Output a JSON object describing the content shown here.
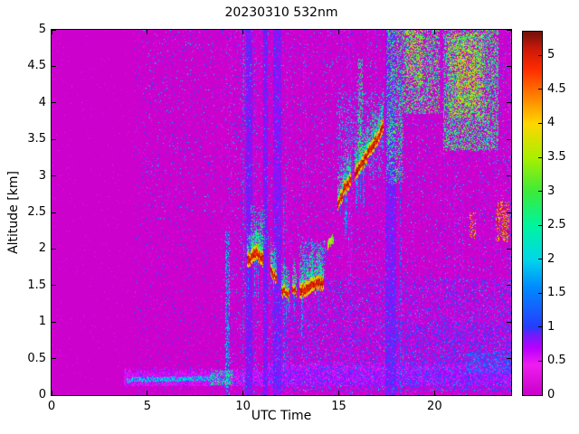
{
  "chart_data": {
    "type": "heatmap",
    "title": "20230310 532nm",
    "xlabel": "UTC Time",
    "ylabel": "Altitude [km]",
    "x_range": [
      0,
      24
    ],
    "y_range": [
      0,
      5
    ],
    "value_range": [
      0,
      5.35
    ],
    "x_ticks": [
      0,
      5,
      10,
      15,
      20
    ],
    "y_ticks": [
      0,
      0.5,
      1,
      1.5,
      2,
      2.5,
      3,
      3.5,
      4,
      4.5,
      5
    ],
    "colorbar_ticks": [
      0,
      0.5,
      1,
      1.5,
      2,
      2.5,
      3,
      3.5,
      4,
      4.5,
      5
    ],
    "background_value": 0.03,
    "colormap_stops": [
      [
        0.0,
        [
          202,
          0,
          202
        ]
      ],
      [
        0.45,
        [
          240,
          30,
          240
        ]
      ],
      [
        0.7,
        [
          185,
          0,
          255
        ]
      ],
      [
        0.9,
        [
          110,
          30,
          250
        ]
      ],
      [
        1.0,
        [
          40,
          60,
          255
        ]
      ],
      [
        1.6,
        [
          0,
          140,
          255
        ]
      ],
      [
        2.0,
        [
          0,
          215,
          235
        ]
      ],
      [
        2.5,
        [
          0,
          245,
          160
        ]
      ],
      [
        3.0,
        [
          60,
          235,
          60
        ]
      ],
      [
        3.5,
        [
          170,
          240,
          0
        ]
      ],
      [
        4.0,
        [
          255,
          215,
          0
        ]
      ],
      [
        4.4,
        [
          255,
          130,
          0
        ]
      ],
      [
        4.8,
        [
          255,
          45,
          0
        ]
      ],
      [
        5.1,
        [
          205,
          25,
          10
        ]
      ],
      [
        5.35,
        [
          115,
          18,
          10
        ]
      ]
    ],
    "features": [
      {
        "type": "noise",
        "t": [
          0,
          24
        ],
        "alt": [
          0,
          5
        ],
        "density": 0.012,
        "vmin": 0.15,
        "vmax": 0.65
      },
      {
        "type": "noise",
        "t": [
          4.3,
          9.0
        ],
        "alt": [
          0,
          5
        ],
        "density": 0.055,
        "vmin": 0.2,
        "vmax": 1.5
      },
      {
        "type": "noise",
        "t": [
          4.8,
          8.6
        ],
        "alt": [
          2.4,
          5
        ],
        "density": 0.025,
        "vmin": 0.9,
        "vmax": 2.4
      },
      {
        "type": "noise",
        "t": [
          9.0,
          24
        ],
        "alt": [
          0,
          5
        ],
        "density": 0.1,
        "vmin": 0.2,
        "vmax": 1.4
      },
      {
        "type": "noise",
        "t": [
          9.0,
          24
        ],
        "alt": [
          0,
          5
        ],
        "density": 0.018,
        "vmin": 1.4,
        "vmax": 2.7
      },
      {
        "type": "noise",
        "t": [
          11.4,
          24
        ],
        "alt": [
          0.05,
          1.6
        ],
        "density": 0.33,
        "vmin": 0.35,
        "vmax": 1.3
      },
      {
        "type": "noise",
        "t": [
          17.5,
          24
        ],
        "alt": [
          0.05,
          1.0
        ],
        "density": 0.25,
        "vmin": 0.5,
        "vmax": 1.3
      },
      {
        "type": "columns_texture",
        "t": [
          8.8,
          24
        ],
        "alt": [
          0,
          5
        ],
        "count": 110,
        "amp": 0.28
      },
      {
        "type": "band",
        "t": [
          3.8,
          24
        ],
        "alt": [
          0.12,
          0.33
        ],
        "value": 0.55,
        "jitter": 0.3
      },
      {
        "type": "band",
        "t": [
          11.3,
          24
        ],
        "alt": [
          0.12,
          0.42
        ],
        "value": 0.5,
        "jitter": 0.3
      },
      {
        "type": "line",
        "t": [
          3.95,
          8.3
        ],
        "alt": [
          0.2,
          0.22
        ],
        "value": 1.9,
        "jitter": 0.45,
        "thickness": 0.06
      },
      {
        "type": "patch",
        "t": [
          8.3,
          9.45
        ],
        "alt": [
          0.14,
          0.34
        ],
        "density": 0.75,
        "vmin": 1.4,
        "vmax": 3.0
      },
      {
        "type": "column",
        "t": 9.2,
        "width": 0.22,
        "alt": [
          0,
          2.25
        ],
        "density": 0.6,
        "vmin": 0.8,
        "vmax": 2.5
      },
      {
        "type": "column",
        "t": 10.05,
        "width": 0.1,
        "alt": [
          0,
          5
        ],
        "density": 0.45,
        "vmin": 0.7,
        "vmax": 2.0
      },
      {
        "type": "column",
        "t": 10.35,
        "width": 0.3,
        "alt": [
          0,
          5
        ],
        "density": 0.88,
        "vmin": 0.7,
        "vmax": 1.0
      },
      {
        "type": "column",
        "t": 11.2,
        "width": 0.22,
        "alt": [
          0,
          5
        ],
        "density": 0.88,
        "vmin": 0.7,
        "vmax": 1.0
      },
      {
        "type": "column",
        "t": 11.8,
        "width": 0.45,
        "alt": [
          0,
          5
        ],
        "density": 0.82,
        "vmin": 0.65,
        "vmax": 1.0
      },
      {
        "type": "column",
        "t": 12.15,
        "width": 0.1,
        "alt": [
          0.3,
          2.85
        ],
        "density": 0.5,
        "vmin": 0.8,
        "vmax": 2.2
      },
      {
        "type": "column",
        "t": 13.65,
        "width": 0.1,
        "alt": [
          1.45,
          2.15
        ],
        "density": 0.55,
        "vmin": 1.2,
        "vmax": 2.4
      },
      {
        "type": "column",
        "t": 17.75,
        "width": 0.55,
        "alt": [
          0,
          5
        ],
        "density": 0.85,
        "vmin": 0.65,
        "vmax": 1.0
      },
      {
        "type": "column",
        "t": 18.25,
        "width": 0.12,
        "alt": [
          0,
          5
        ],
        "density": 0.4,
        "vmin": 0.7,
        "vmax": 1.9
      },
      {
        "type": "patch",
        "t": [
          10.4,
          11.15
        ],
        "alt": [
          2.0,
          2.6
        ],
        "density": 0.3,
        "vmin": 1.4,
        "vmax": 2.9
      },
      {
        "type": "patch",
        "t": [
          13.0,
          14.3
        ],
        "alt": [
          1.6,
          2.1
        ],
        "density": 0.3,
        "vmin": 1.2,
        "vmax": 2.6
      },
      {
        "type": "patch",
        "t": [
          14.9,
          17.35
        ],
        "alt": [
          3.0,
          4.15
        ],
        "density": 0.18,
        "vmin": 1.2,
        "vmax": 2.5
      },
      {
        "type": "patch",
        "t": [
          16.0,
          16.25
        ],
        "alt": [
          3.3,
          4.6
        ],
        "density": 0.5,
        "vmin": 1.8,
        "vmax": 3.2
      },
      {
        "type": "patch",
        "t": [
          17.5,
          18.35
        ],
        "alt": [
          2.9,
          5.0
        ],
        "density": 0.42,
        "vmin": 1.7,
        "vmax": 3.4
      },
      {
        "type": "patch",
        "t": [
          18.35,
          20.25
        ],
        "alt": [
          3.85,
          5.0
        ],
        "density": 0.5,
        "vmin": 1.7,
        "vmax": 3.6
      },
      {
        "type": "patch",
        "t": [
          18.5,
          19.4
        ],
        "alt": [
          4.25,
          5.0
        ],
        "density": 0.3,
        "vmin": 2.8,
        "vmax": 4.2
      },
      {
        "type": "patch",
        "t": [
          20.45,
          23.35
        ],
        "alt": [
          3.35,
          5.0
        ],
        "density": 0.55,
        "vmin": 1.7,
        "vmax": 3.5
      },
      {
        "type": "patch",
        "t": [
          20.7,
          22.6
        ],
        "alt": [
          3.8,
          4.95
        ],
        "density": 0.35,
        "vmin": 2.6,
        "vmax": 4.1
      },
      {
        "type": "patch",
        "t": [
          21.1,
          22.2
        ],
        "alt": [
          4.0,
          4.75
        ],
        "density": 0.18,
        "vmin": 3.6,
        "vmax": 4.4
      },
      {
        "type": "patch",
        "t": [
          21.85,
          22.15
        ],
        "alt": [
          2.15,
          2.5
        ],
        "density": 0.5,
        "vmin": 3.2,
        "vmax": 5.2
      },
      {
        "type": "patch",
        "t": [
          23.2,
          23.9
        ],
        "alt": [
          2.1,
          2.65
        ],
        "density": 0.5,
        "vmin": 3.2,
        "vmax": 5.3
      },
      {
        "type": "patch",
        "t": [
          21.6,
          24
        ],
        "alt": [
          0.3,
          0.6
        ],
        "density": 0.45,
        "vmin": 0.8,
        "vmax": 1.8
      },
      {
        "type": "cloud",
        "points": [
          [
            10.25,
            1.84
          ],
          [
            10.65,
            1.95
          ],
          [
            11.05,
            1.87
          ]
        ],
        "thickness": 0.16
      },
      {
        "type": "cloud",
        "points": [
          [
            11.45,
            1.7
          ],
          [
            11.75,
            1.6
          ]
        ],
        "thickness": 0.12
      },
      {
        "type": "cloud",
        "points": [
          [
            12.0,
            1.44
          ],
          [
            12.4,
            1.38
          ]
        ],
        "thickness": 0.1
      },
      {
        "type": "cloud",
        "points": [
          [
            12.6,
            1.46
          ],
          [
            12.8,
            1.42
          ]
        ],
        "thickness": 0.1
      },
      {
        "type": "cloud",
        "points": [
          [
            12.95,
            1.42
          ],
          [
            13.35,
            1.48
          ],
          [
            13.8,
            1.52
          ],
          [
            14.2,
            1.55
          ]
        ],
        "thickness": 0.16
      },
      {
        "type": "cloud",
        "points": [
          [
            14.45,
            2.08
          ],
          [
            14.7,
            2.14
          ]
        ],
        "thickness": 0.08,
        "weak": true
      },
      {
        "type": "cloud",
        "points": [
          [
            14.95,
            2.62
          ],
          [
            15.25,
            2.82
          ],
          [
            15.6,
            2.95
          ]
        ],
        "thickness": 0.14
      },
      {
        "type": "cloud",
        "points": [
          [
            15.85,
            3.02
          ],
          [
            16.3,
            3.22
          ],
          [
            16.7,
            3.4
          ],
          [
            17.05,
            3.52
          ],
          [
            17.3,
            3.72
          ]
        ],
        "thickness": 0.15
      }
    ]
  }
}
